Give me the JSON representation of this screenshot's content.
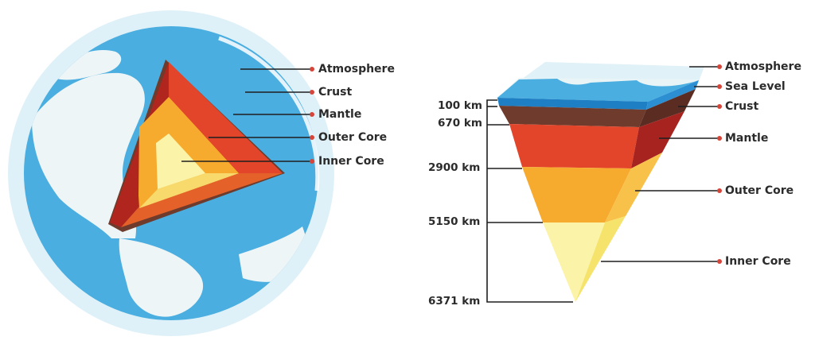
{
  "globe": {
    "labels": [
      {
        "id": "atmosphere",
        "text": "Atmosphere"
      },
      {
        "id": "crust",
        "text": "Crust"
      },
      {
        "id": "mantle",
        "text": "Mantle"
      },
      {
        "id": "outer-core",
        "text": "Outer Core"
      },
      {
        "id": "inner-core",
        "text": "Inner Core"
      }
    ]
  },
  "wedge": {
    "labels": [
      {
        "id": "atmosphere",
        "text": "Atmosphere"
      },
      {
        "id": "sea-level",
        "text": "Sea Level"
      },
      {
        "id": "crust",
        "text": "Crust"
      },
      {
        "id": "mantle",
        "text": "Mantle"
      },
      {
        "id": "outer-core",
        "text": "Outer Core"
      },
      {
        "id": "inner-core",
        "text": "Inner Core"
      }
    ],
    "depths": [
      "100 km",
      "670 km",
      "2900 km",
      "5150 km",
      "6371 km"
    ]
  },
  "colors": {
    "atmosphere": "#dff1f8",
    "ocean": "#4aaee0",
    "land": "#eef5f7",
    "crust": "#6e3b2c",
    "mantle": "#e2452a",
    "mantle_dark": "#a7231f",
    "outer_core": "#f6ab2f",
    "inner_core": "#fbf3a8",
    "dot": "#d6453a"
  }
}
